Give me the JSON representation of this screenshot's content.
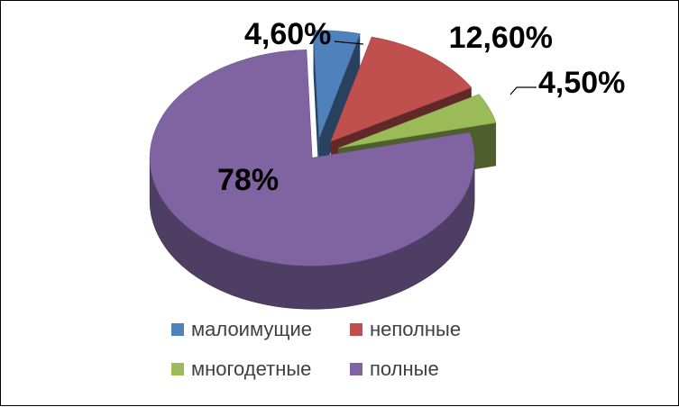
{
  "chart_data": {
    "type": "pie",
    "title": "",
    "categories": [
      "малоимущие",
      "неполные",
      "многодетные",
      "полные"
    ],
    "values": [
      4.6,
      12.6,
      4.5,
      78
    ],
    "labels": [
      "4,60%",
      "12,60%",
      "4,50%",
      "78%"
    ],
    "colors": [
      "#4F81BD",
      "#C0504D",
      "#9BBB59",
      "#8064A2"
    ],
    "legend_position": "bottom",
    "exploded": true,
    "three_d": true
  }
}
